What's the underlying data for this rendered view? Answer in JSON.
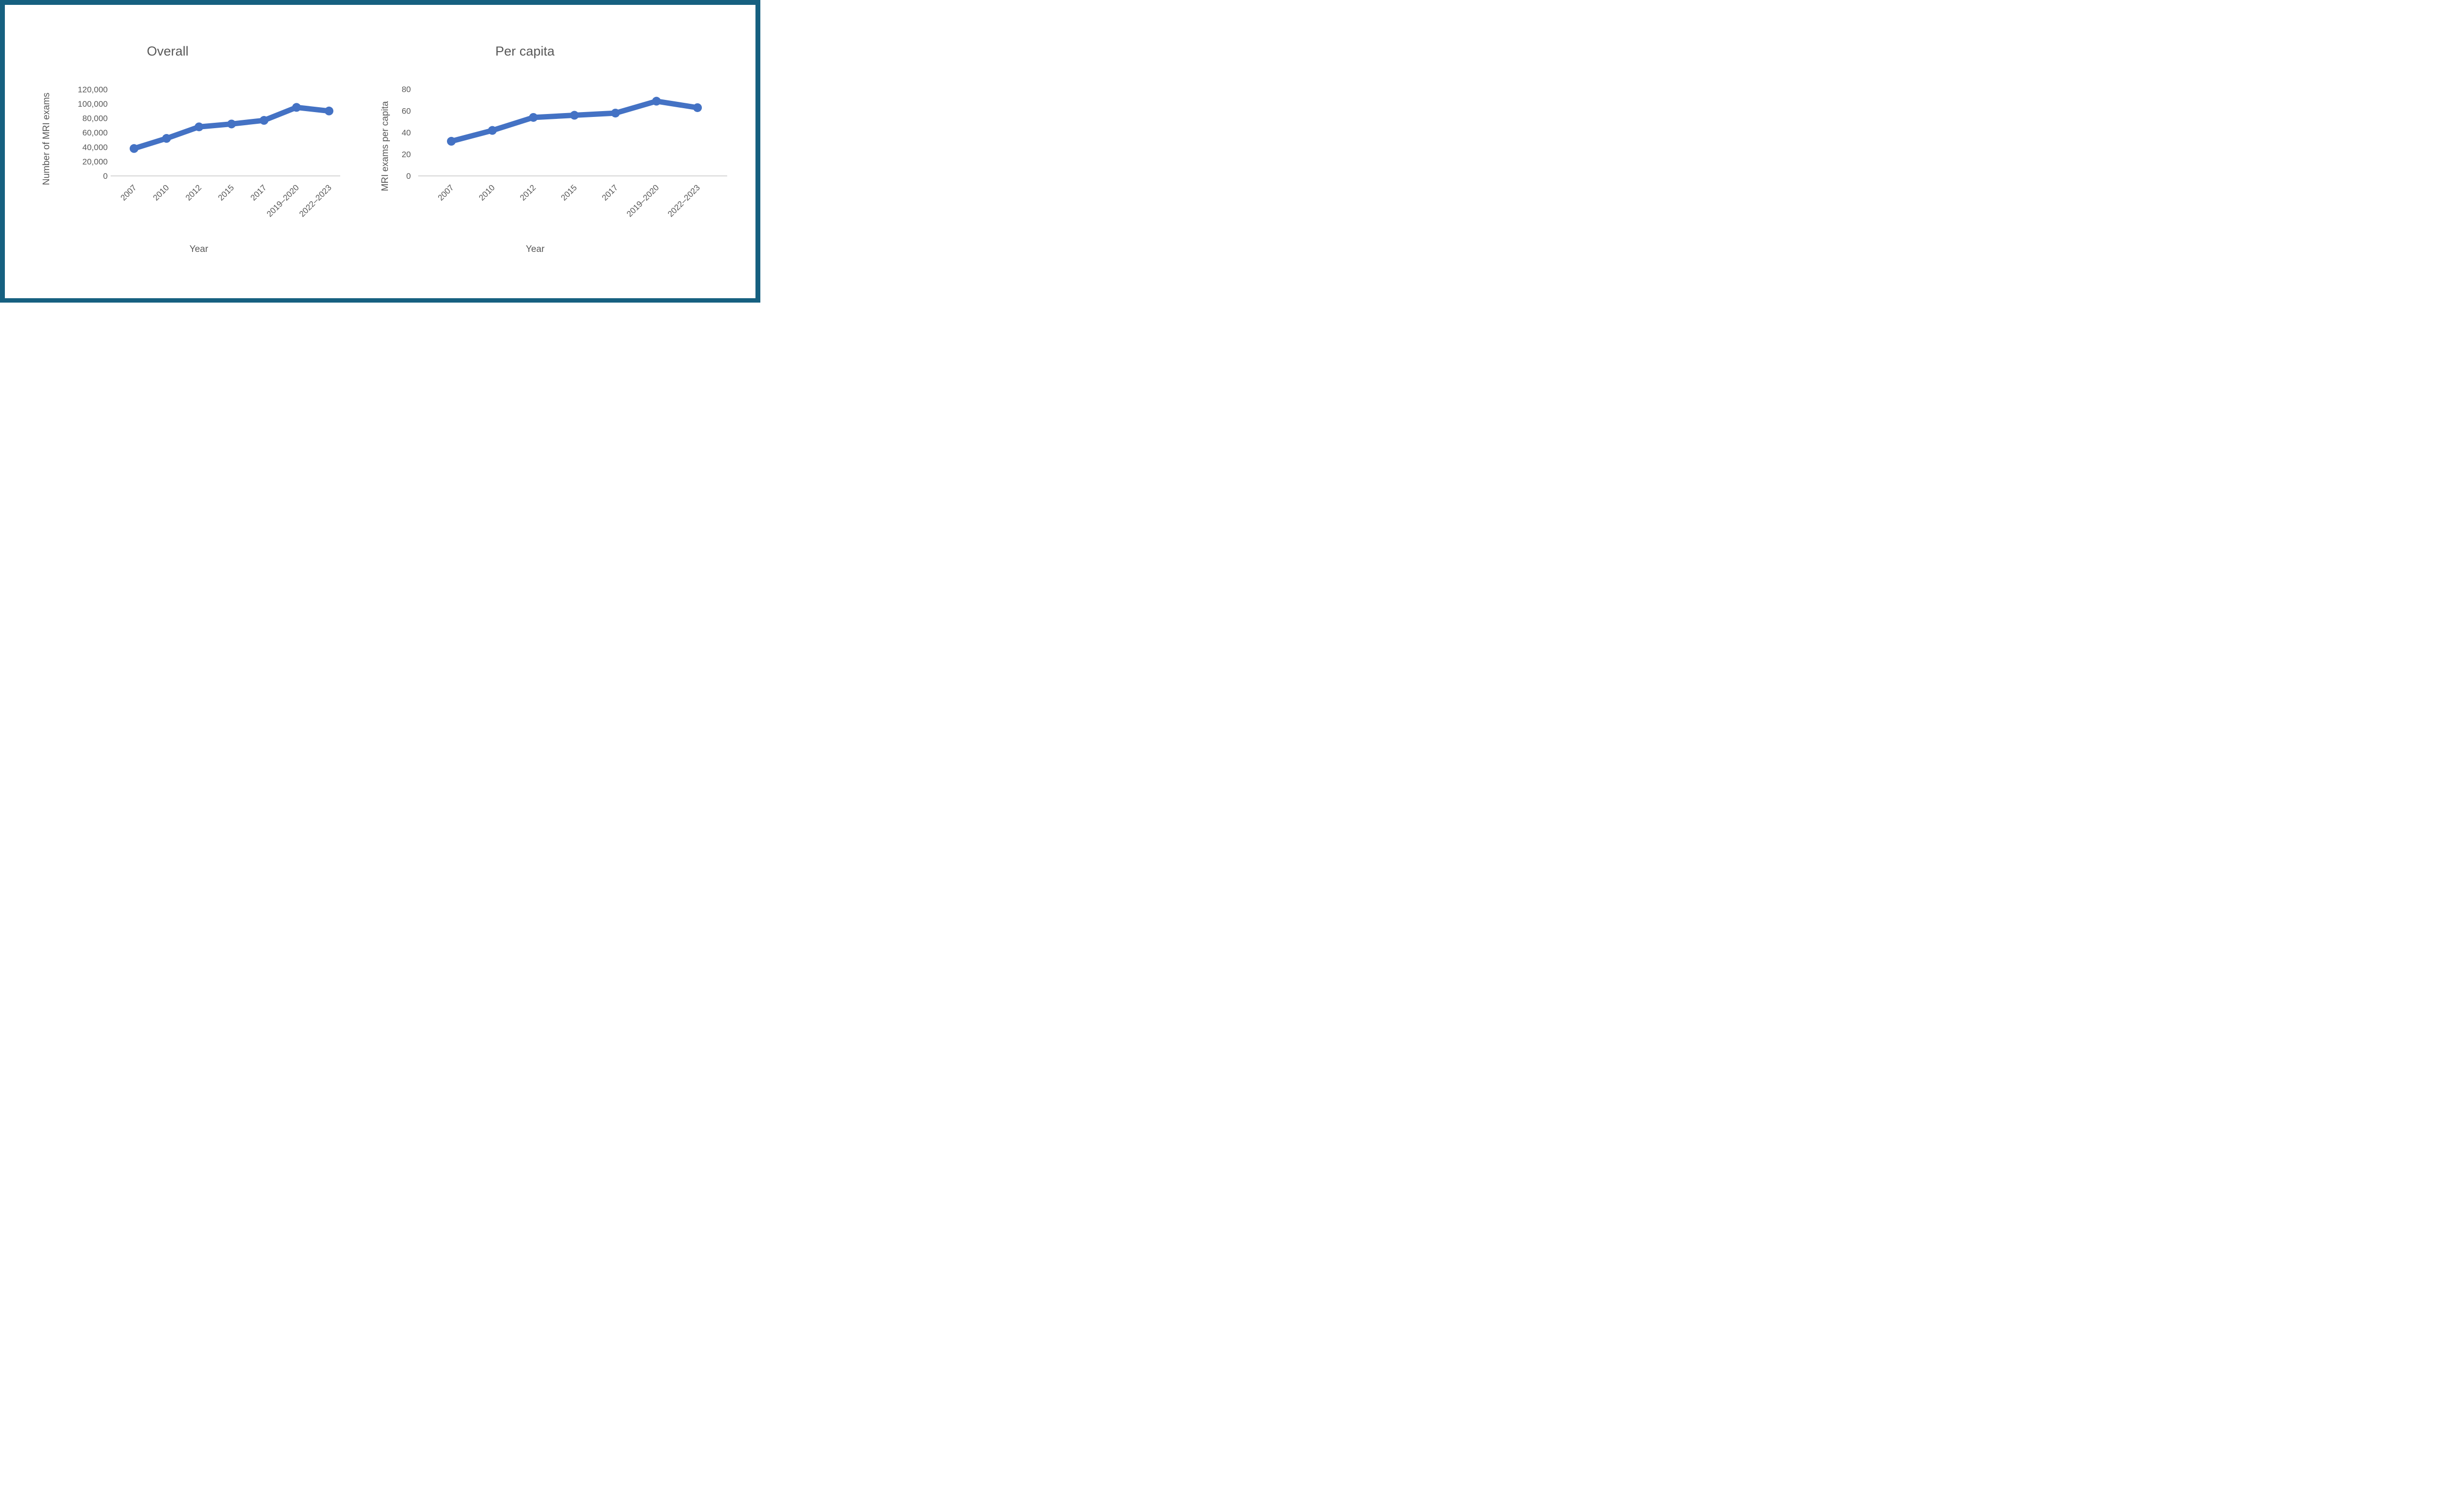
{
  "window": {
    "border_color": "#166080",
    "background_color": "#ffffff",
    "text_color": "#595959"
  },
  "chart_data": [
    {
      "type": "line",
      "title": "Overall",
      "xlabel": "Year",
      "ylabel": "Number of MRI exams",
      "categories": [
        "2007",
        "2010",
        "2012",
        "2015",
        "2017",
        "2019–2020",
        "2022–2023"
      ],
      "values": [
        38000,
        52000,
        68000,
        72000,
        77000,
        95000,
        90000
      ],
      "ylim": [
        0,
        120000
      ],
      "ytick_step": 20000,
      "ytick_labels": [
        "0",
        "20,000",
        "40,000",
        "60,000",
        "80,000",
        "100,000",
        "120,000"
      ],
      "series_color": "#4472C4",
      "axis_line_color": "#D9D9D9",
      "text_color": "#595959",
      "grid": "off",
      "legend": "none",
      "marker": "circle"
    },
    {
      "type": "line",
      "title": "Per capita",
      "xlabel": "Year",
      "ylabel": "MRI exams per capita",
      "categories": [
        "2007",
        "2010",
        "2012",
        "2015",
        "2017",
        "2019–2020",
        "2022–2023"
      ],
      "values": [
        32,
        42,
        54,
        56,
        58,
        69,
        63
      ],
      "ylim": [
        0,
        80
      ],
      "ytick_step": 20,
      "ytick_labels": [
        "0",
        "20",
        "40",
        "60",
        "80"
      ],
      "series_color": "#4472C4",
      "axis_line_color": "#D9D9D9",
      "text_color": "#595959",
      "grid": "off",
      "legend": "none",
      "marker": "circle"
    }
  ]
}
